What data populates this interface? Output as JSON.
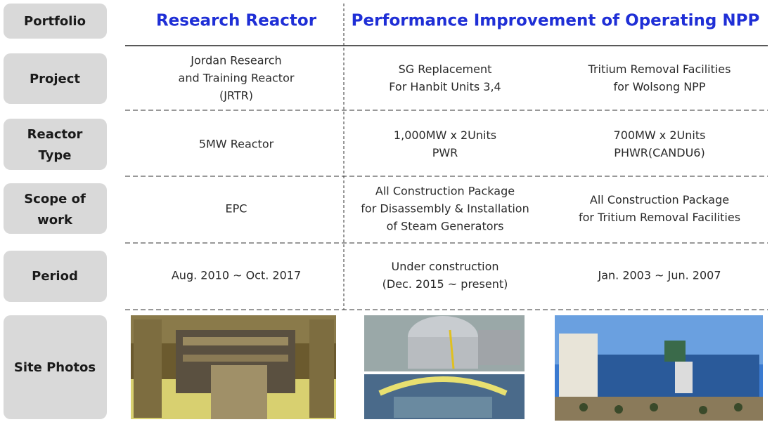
{
  "header": {
    "row_label": "Portfolio",
    "groups": [
      "Research Reactor",
      "Performance Improvement of Operating NPP"
    ]
  },
  "rows": [
    {
      "label": [
        "Project"
      ],
      "cells": [
        [
          "Jordan Research",
          "and Training Reactor",
          "(JRTR)"
        ],
        [
          "SG Replacement",
          "For Hanbit Units 3,4"
        ],
        [
          "Tritium Removal Facilities",
          "for Wolsong NPP"
        ]
      ]
    },
    {
      "label": [
        "Reactor",
        "Type"
      ],
      "cells": [
        [
          "5MW Reactor"
        ],
        [
          "1,000MW x 2Units",
          "PWR"
        ],
        [
          "700MW x 2Units",
          "PHWR(CANDU6)"
        ]
      ]
    },
    {
      "label": [
        "Scope of",
        "work"
      ],
      "cells": [
        [
          "EPC"
        ],
        [
          "All Construction Package",
          "for Disassembly & Installation",
          "of Steam Generators"
        ],
        [
          "All Construction Package",
          "for Tritium Removal Facilities"
        ]
      ]
    },
    {
      "label": [
        "Period"
      ],
      "cells": [
        [
          "Aug. 2010 ~ Oct. 2017"
        ],
        [
          "Under construction",
          "(Dec. 2015 ~ present)"
        ],
        [
          "Jan. 2003 ~ Jun. 2007"
        ]
      ]
    }
  ],
  "photos_label": "Site Photos"
}
